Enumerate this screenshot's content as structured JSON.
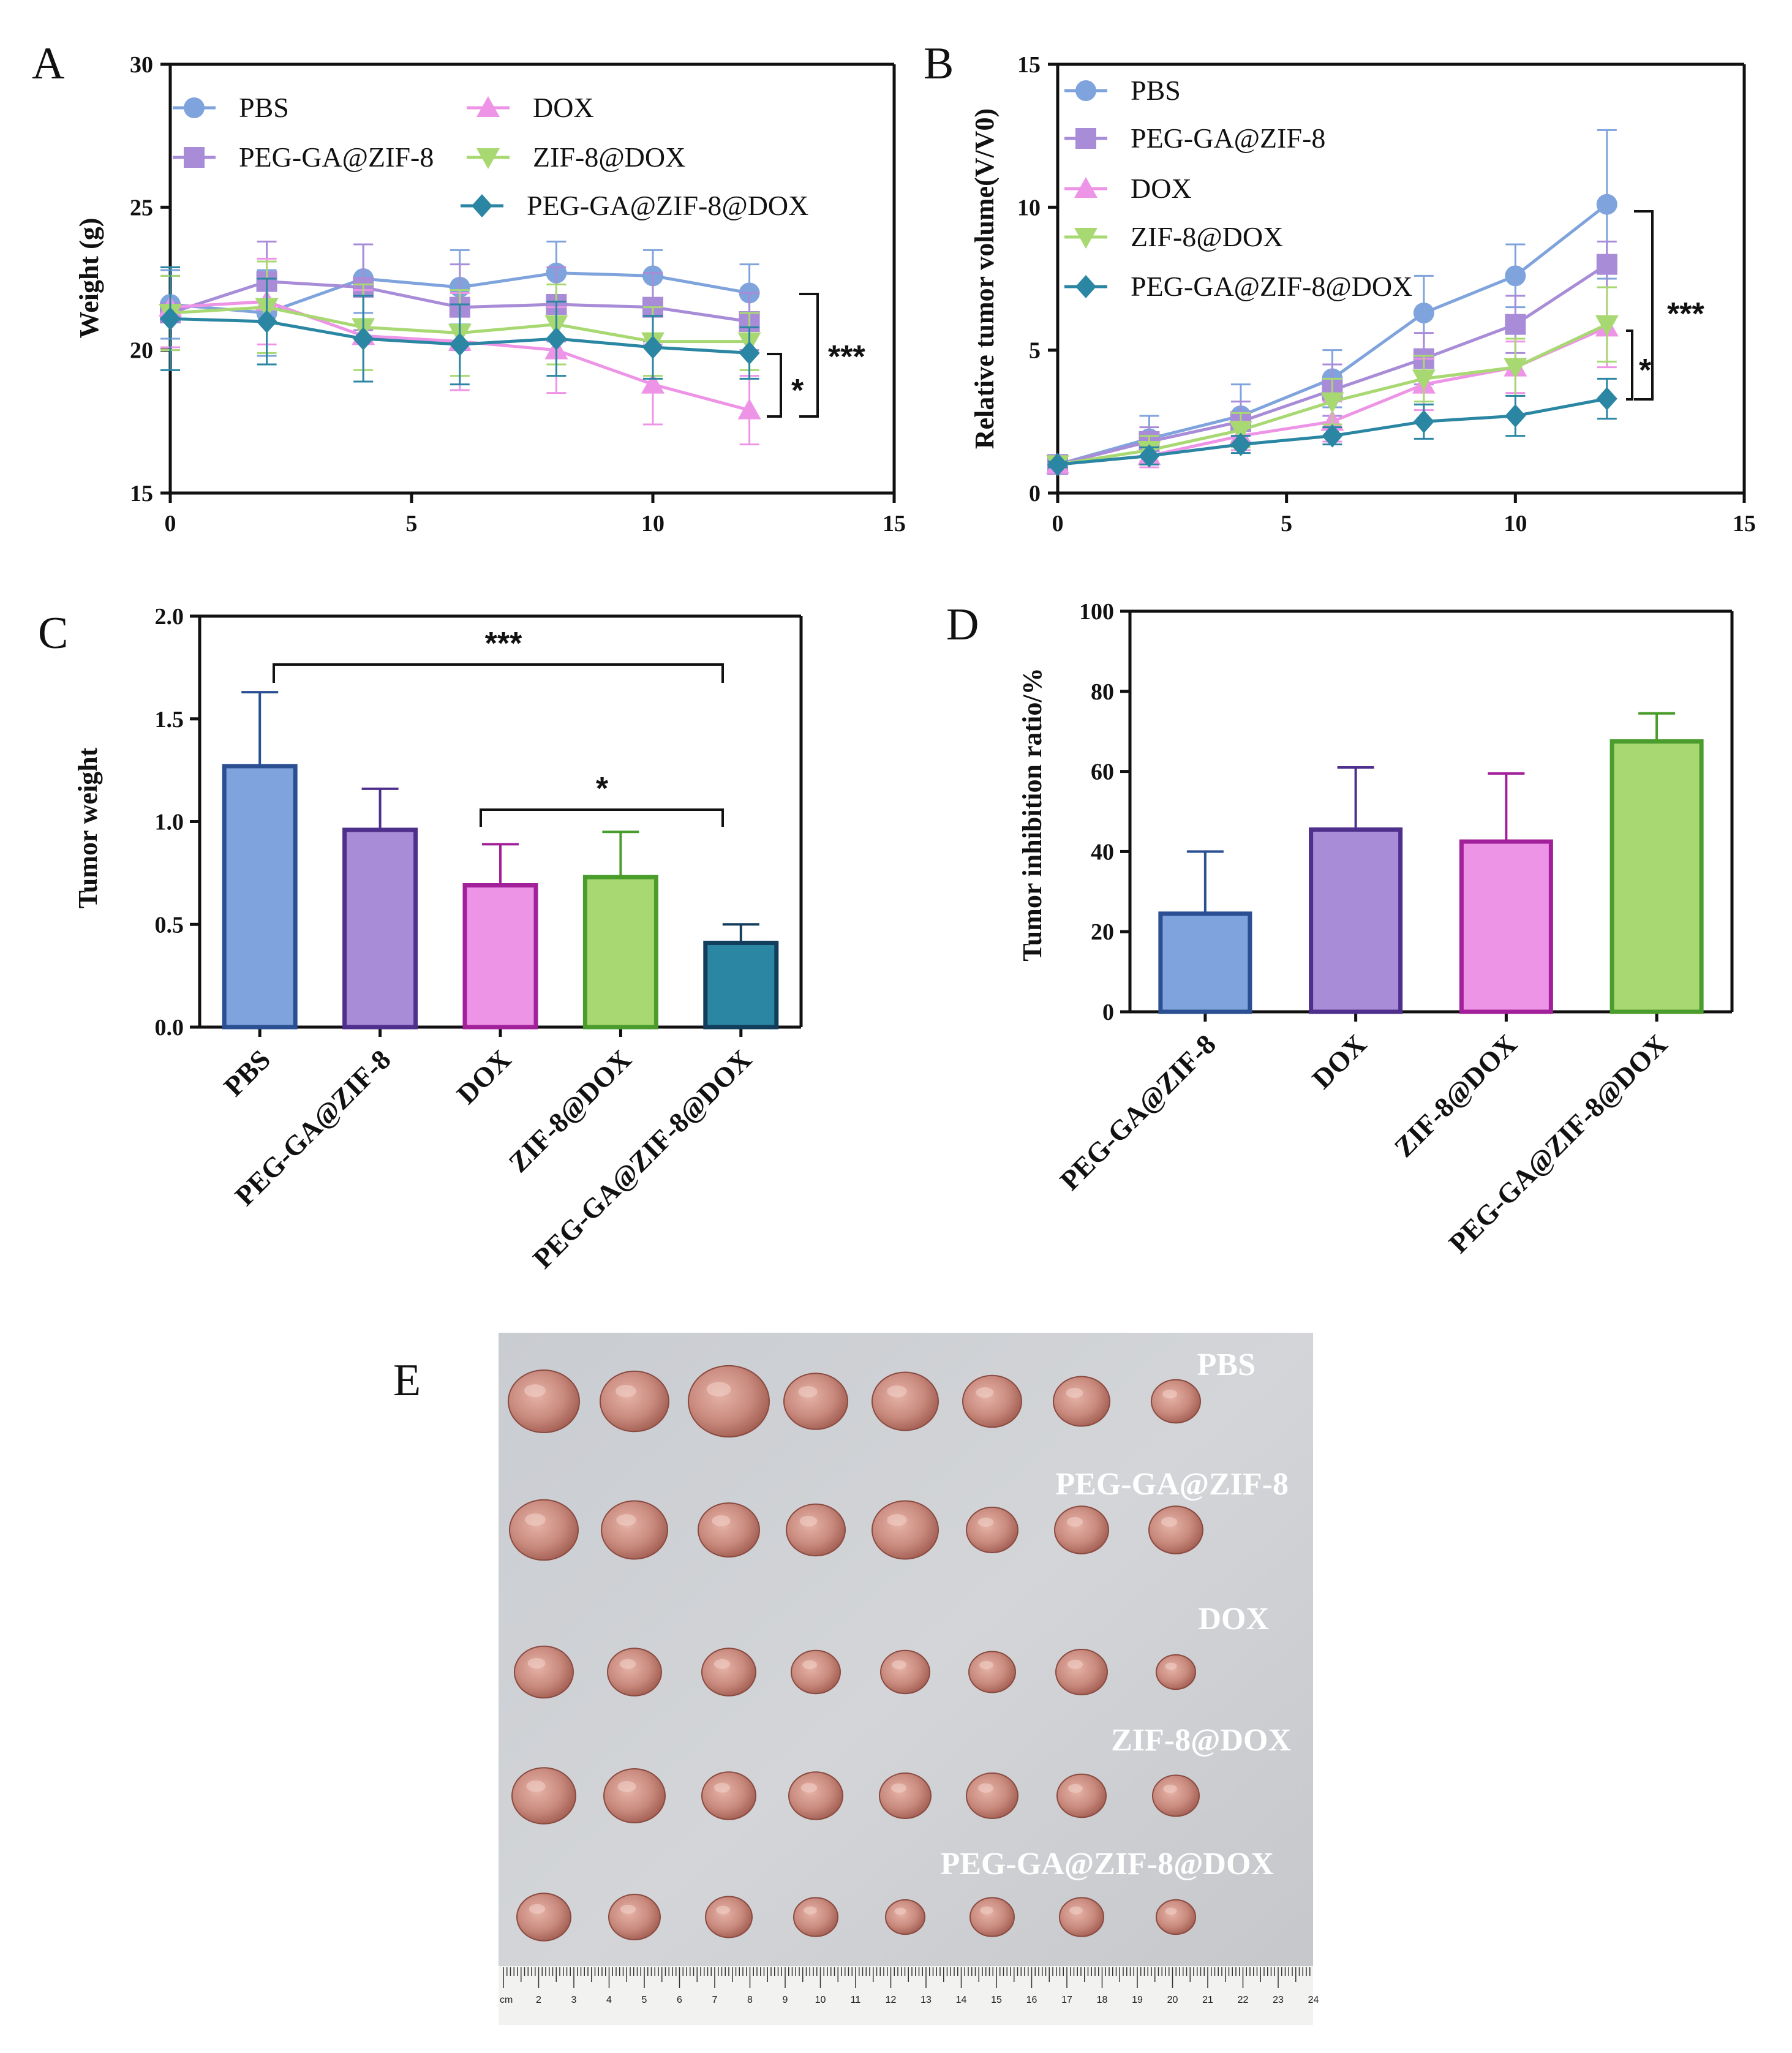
{
  "panels": {
    "A": "A",
    "B": "B",
    "C": "C",
    "D": "D",
    "E": "E"
  },
  "colors": {
    "PBS": "#7fa3dc",
    "PEG-GA@ZIF-8": "#a88cd8",
    "DOX": "#ee94e6",
    "ZIF-8@DOX": "#a8d872",
    "PEG-GA@ZIF-8@DOX": "#2a86a2",
    "bar_PBS_fill": "#7fa3dc",
    "bar_PBS_stroke": "#2a4f92",
    "bar_PEG_fill": "#a88cd8",
    "bar_PEG_stroke": "#4e2f8c",
    "bar_DOX_fill": "#ee94e6",
    "bar_DOX_stroke": "#a2209a",
    "bar_ZIF_fill": "#a8d872",
    "bar_ZIF_stroke": "#4a9c2c",
    "bar_PGZD_fill": "#2a86a2",
    "bar_PGZD_stroke": "#123e5c"
  },
  "chart_data": [
    {
      "id": "A",
      "type": "line",
      "title": "",
      "xlabel": "",
      "ylabel": "Weight (g)",
      "xlim": [
        0,
        15
      ],
      "ylim": [
        15,
        30
      ],
      "xticks": [
        0,
        5,
        10,
        15
      ],
      "yticks": [
        15,
        20,
        25,
        30
      ],
      "x": [
        0,
        2,
        4,
        6,
        8,
        10,
        12
      ],
      "series": [
        {
          "name": "PBS",
          "marker": "circle",
          "values": [
            21.6,
            21.3,
            22.5,
            22.2,
            22.7,
            22.6,
            22.0
          ],
          "errors": [
            1.2,
            1.5,
            1.2,
            1.3,
            1.1,
            0.9,
            1.0
          ]
        },
        {
          "name": "PEG-GA@ZIF-8",
          "marker": "square",
          "values": [
            21.3,
            22.4,
            22.2,
            21.5,
            21.6,
            21.5,
            21.0
          ],
          "errors": [
            1.3,
            1.4,
            1.5,
            1.5,
            1.3,
            1.2,
            1.0
          ]
        },
        {
          "name": "DOX",
          "marker": "triangle-up",
          "values": [
            21.5,
            21.7,
            20.5,
            20.3,
            20.0,
            18.8,
            17.9
          ],
          "errors": [
            1.4,
            1.5,
            1.6,
            1.7,
            1.5,
            1.4,
            1.2
          ]
        },
        {
          "name": "ZIF-8@DOX",
          "marker": "triangle-down",
          "values": [
            21.3,
            21.5,
            20.8,
            20.6,
            20.9,
            20.3,
            20.3
          ],
          "errors": [
            1.3,
            1.6,
            1.5,
            1.5,
            1.4,
            1.2,
            1.0
          ]
        },
        {
          "name": "PEG-GA@ZIF-8@DOX",
          "marker": "diamond",
          "values": [
            21.1,
            21.0,
            20.4,
            20.2,
            20.4,
            20.1,
            19.9
          ],
          "errors": [
            1.8,
            1.5,
            1.5,
            1.4,
            1.3,
            1.1,
            0.9
          ]
        }
      ],
      "legend": [
        "PBS",
        "DOX",
        "PEG-GA@ZIF-8",
        "ZIF-8@DOX",
        "PEG-GA@ZIF-8@DOX"
      ],
      "legend_position": "top-left",
      "annotations": [
        {
          "text": "*"
        },
        {
          "text": "***"
        }
      ]
    },
    {
      "id": "B",
      "type": "line",
      "title": "",
      "xlabel": "",
      "ylabel": "Relative tumor volume(V/V0)",
      "xlim": [
        0,
        15
      ],
      "ylim": [
        0,
        15
      ],
      "xticks": [
        0,
        5,
        10,
        15
      ],
      "yticks": [
        0,
        5,
        10,
        15
      ],
      "x": [
        0,
        2,
        4,
        6,
        8,
        10,
        12
      ],
      "series": [
        {
          "name": "PBS",
          "marker": "circle",
          "values": [
            1.0,
            1.9,
            2.7,
            4.0,
            6.3,
            7.6,
            10.1
          ],
          "errors": [
            0.1,
            0.8,
            1.1,
            1.0,
            1.3,
            1.1,
            2.6
          ]
        },
        {
          "name": "PEG-GA@ZIF-8",
          "marker": "square",
          "values": [
            1.0,
            1.8,
            2.5,
            3.6,
            4.7,
            5.9,
            8.0
          ],
          "errors": [
            0.1,
            0.5,
            0.7,
            0.9,
            0.9,
            1.0,
            0.8
          ]
        },
        {
          "name": "DOX",
          "marker": "triangle-up",
          "values": [
            1.0,
            1.3,
            2.0,
            2.5,
            3.8,
            4.4,
            5.8
          ],
          "errors": [
            0.1,
            0.4,
            0.5,
            0.7,
            0.9,
            0.9,
            1.4
          ]
        },
        {
          "name": "ZIF-8@DOX",
          "marker": "triangle-down",
          "values": [
            1.0,
            1.5,
            2.2,
            3.2,
            4.0,
            4.4,
            5.9
          ],
          "errors": [
            0.1,
            0.5,
            0.6,
            0.8,
            0.8,
            1.0,
            1.3
          ]
        },
        {
          "name": "PEG-GA@ZIF-8@DOX",
          "marker": "diamond",
          "values": [
            1.0,
            1.3,
            1.7,
            2.0,
            2.5,
            2.7,
            3.3
          ],
          "errors": [
            0.1,
            0.3,
            0.3,
            0.3,
            0.6,
            0.7,
            0.7
          ]
        }
      ],
      "legend": [
        "PBS",
        "PEG-GA@ZIF-8",
        "DOX",
        "ZIF-8@DOX",
        "PEG-GA@ZIF-8@DOX"
      ],
      "legend_position": "top-left",
      "annotations": [
        {
          "text": "***"
        },
        {
          "text": "*"
        }
      ]
    },
    {
      "id": "C",
      "type": "bar",
      "title": "",
      "xlabel": "",
      "ylabel": "Tumor weight",
      "ylim": [
        0,
        2.0
      ],
      "yticks": [
        "0.0",
        "0.5",
        "1.0",
        "1.5",
        "2.0"
      ],
      "categories": [
        "PBS",
        "PEG-GA@ZIF-8",
        "DOX",
        "ZIF-8@DOX",
        "PEG-GA@ZIF-8@DOX"
      ],
      "values": [
        1.27,
        0.96,
        0.69,
        0.73,
        0.41
      ],
      "errors": [
        0.36,
        0.2,
        0.2,
        0.22,
        0.09
      ],
      "annotations": [
        {
          "text": "***"
        },
        {
          "text": "*"
        }
      ]
    },
    {
      "id": "D",
      "type": "bar",
      "title": "",
      "xlabel": "",
      "ylabel": "Tumor inhibition ratio/%",
      "ylim": [
        0,
        100
      ],
      "yticks": [
        "0",
        "20",
        "40",
        "60",
        "80",
        "100"
      ],
      "categories": [
        "PEG-GA@ZIF-8",
        "DOX",
        "ZIF-8@DOX",
        "PEG-GA@ZIF-8@DOX"
      ],
      "values": [
        24.5,
        45.5,
        42.5,
        67.5
      ],
      "errors": [
        15.5,
        15.5,
        17.0,
        7.0
      ]
    }
  ],
  "photo": {
    "labels": [
      "PBS",
      "PEG-GA@ZIF-8",
      "DOX",
      "ZIF-8@DOX",
      "PEG-GA@ZIF-8@DOX"
    ],
    "ruler_unit": "cm",
    "ruler_numbers": [
      "2",
      "3",
      "4",
      "5",
      "6",
      "7",
      "8",
      "9",
      "10",
      "11",
      "12",
      "13",
      "14",
      "15",
      "16",
      "17",
      "18",
      "19",
      "20",
      "21",
      "22",
      "23",
      "24"
    ]
  }
}
